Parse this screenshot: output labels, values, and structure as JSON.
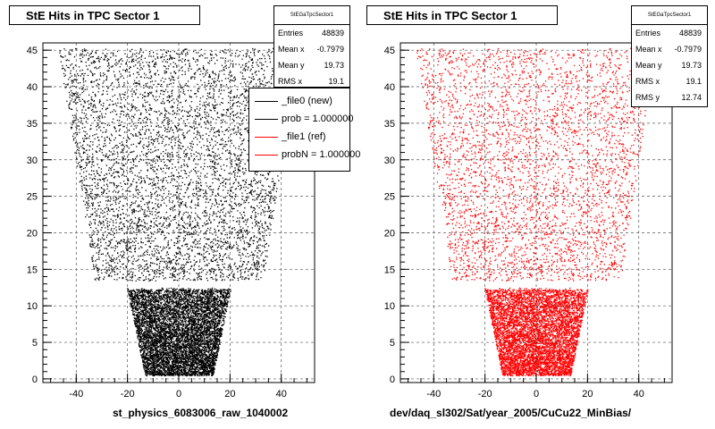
{
  "pads": [
    {
      "title": "StE Hits in TPC Sector 1",
      "stats": {
        "name": "StEGaTpcSector1",
        "rows": [
          {
            "key": "Entries",
            "value": "48839"
          },
          {
            "key": "Mean x",
            "value": "-0.7979"
          },
          {
            "key": "Mean y",
            "value": "19.73"
          },
          {
            "key": "RMS x",
            "value": "19.1"
          }
        ]
      },
      "legend": [
        {
          "label": "_file0 (new)",
          "color": "#000000"
        },
        {
          "label": "prob = 1.000000",
          "color": "#000000"
        },
        {
          "label": "_file1 (ref)",
          "color": "#ff0000"
        },
        {
          "label": "probN = 1.000000",
          "color": "#ff0000"
        }
      ],
      "xlabel": "st_physics_6083006_raw_1040002",
      "point_color": "#000000"
    },
    {
      "title": "StE Hits in TPC Sector 1",
      "stats": {
        "name": "StEGaTpcSector1",
        "rows": [
          {
            "key": "Entries",
            "value": "48839"
          },
          {
            "key": "Mean x",
            "value": "-0.7979"
          },
          {
            "key": "Mean y",
            "value": "19.73"
          },
          {
            "key": "RMS x",
            "value": "19.1"
          },
          {
            "key": "RMS y",
            "value": "12.74"
          }
        ]
      },
      "legend": [],
      "xlabel": "dev/daq_sl302/Sat/year_2005/CuCu22_MinBias/",
      "point_color": "#ff0000"
    }
  ],
  "chart_data": [
    {
      "type": "scatter",
      "title": "StE Hits in TPC Sector 1",
      "xlabel": "st_physics_6083006_raw_1040002",
      "ylabel": "",
      "xlim": [
        -53,
        53
      ],
      "ylim": [
        -0.5,
        46
      ],
      "xticks": [
        -40,
        -20,
        0,
        20,
        40
      ],
      "yticks": [
        0,
        5,
        10,
        15,
        20,
        25,
        30,
        35,
        40,
        45
      ],
      "grid": true,
      "entries": 48839,
      "mean_x": -0.7979,
      "mean_y": 19.73,
      "rms_x": 19.1,
      "color": "#000000",
      "region": {
        "inner_halfwidth_at_row0": 13,
        "inner_halfwidth_at_row12": 20,
        "gap_rows": [
          12.5,
          13.5
        ],
        "outer_halfwidth_at_row14": 33,
        "outer_halfwidth_at_row45": 47
      }
    },
    {
      "type": "scatter",
      "title": "StE Hits in TPC Sector 1",
      "xlabel": "dev/daq_sl302/Sat/year_2005/CuCu22_MinBias/",
      "ylabel": "",
      "xlim": [
        -53,
        53
      ],
      "ylim": [
        -0.5,
        46
      ],
      "xticks": [
        -40,
        -20,
        0,
        20,
        40
      ],
      "yticks": [
        0,
        5,
        10,
        15,
        20,
        25,
        30,
        35,
        40,
        45
      ],
      "grid": true,
      "entries": 48839,
      "mean_x": -0.7979,
      "mean_y": 19.73,
      "rms_x": 19.1,
      "rms_y": 12.74,
      "color": "#ff0000",
      "region": {
        "inner_halfwidth_at_row0": 13,
        "inner_halfwidth_at_row12": 20,
        "gap_rows": [
          12.5,
          13.5
        ],
        "outer_halfwidth_at_row14": 33,
        "outer_halfwidth_at_row45": 47
      }
    }
  ]
}
